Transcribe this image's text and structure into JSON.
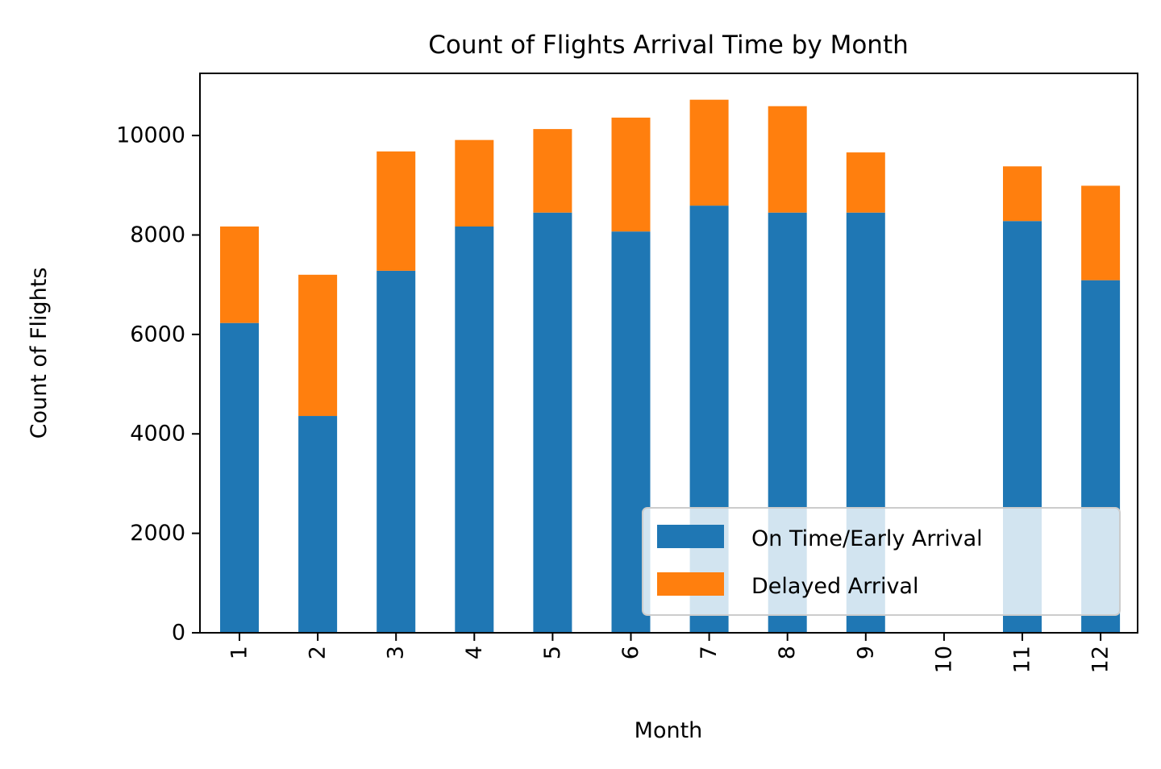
{
  "chart_data": {
    "type": "bar",
    "stacked": true,
    "title": "Count of Flights Arrival Time by Month",
    "xlabel": "Month",
    "ylabel": "Count of Flights",
    "categories": [
      "1",
      "2",
      "3",
      "4",
      "5",
      "6",
      "7",
      "8",
      "9",
      "10",
      "11",
      "12"
    ],
    "series": [
      {
        "name": "On Time/Early Arrival",
        "color": "#1f77b4",
        "values": [
          6230,
          4360,
          7280,
          8170,
          8450,
          8070,
          8590,
          8450,
          8450,
          0,
          8280,
          7090
        ]
      },
      {
        "name": "Delayed Arrival",
        "color": "#ff7f0e",
        "values": [
          1940,
          2840,
          2400,
          1740,
          1680,
          2290,
          2130,
          2140,
          1210,
          0,
          1100,
          1900
        ]
      }
    ],
    "ylim": [
      0,
      11250
    ],
    "yticks": [
      "0",
      "2000",
      "4000",
      "6000",
      "8000",
      "10000"
    ],
    "legend_position": "lower-right",
    "grid": false
  }
}
